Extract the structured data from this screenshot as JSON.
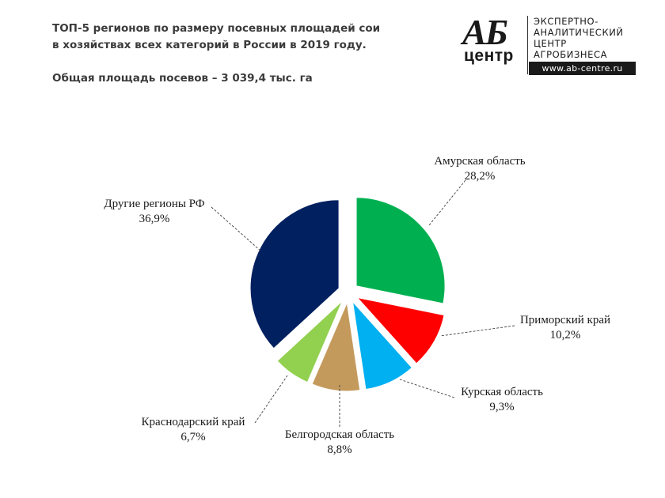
{
  "title": {
    "line1": "ТОП-5 регионов по размеру посевных площадей сои",
    "line2": "в хозяйствах всех категорий в России в 2019 году.",
    "line3": "Общая площадь посевов – 3 039,4 тыс. га"
  },
  "logo": {
    "mark": "АБ",
    "sub": "центр",
    "text_lines": [
      "ЭКСПЕРТНО-",
      "АНАЛИТИЧЕСКИЙ",
      "ЦЕНТР",
      "АГРОБИЗНЕСА"
    ],
    "url": "www.ab-centre.ru"
  },
  "chart_data": {
    "type": "pie",
    "start_angle_deg": 0,
    "direction": "clockwise",
    "exploded": true,
    "slices": [
      {
        "label": "Амурская область",
        "value": 28.2,
        "value_label": "28,2%",
        "color": "#00b050"
      },
      {
        "label": "Приморский край",
        "value": 10.2,
        "value_label": "10,2%",
        "color": "#ff0000"
      },
      {
        "label": "Курская область",
        "value": 9.3,
        "value_label": "9,3%",
        "color": "#00b0f0"
      },
      {
        "label": "Белгородская область",
        "value": 8.8,
        "value_label": "8,8%",
        "color": "#c49a5c"
      },
      {
        "label": "Краснодарский край",
        "value": 6.7,
        "value_label": "6,7%",
        "color": "#92d050"
      },
      {
        "label": "Другие регионы РФ",
        "value": 36.9,
        "value_label": "36,9%",
        "color": "#002060"
      }
    ]
  }
}
